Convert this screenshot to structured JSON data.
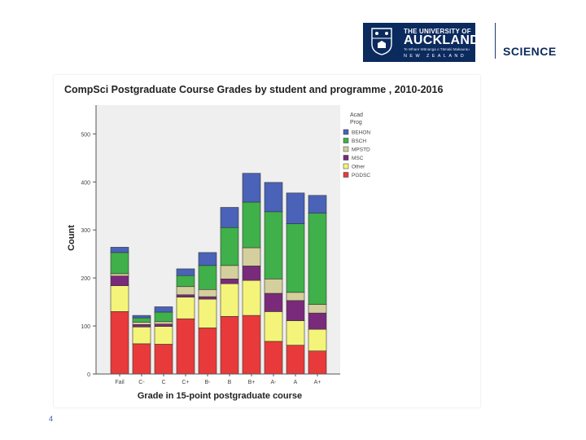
{
  "header": {
    "logo_line1": "THE UNIVERSITY OF",
    "logo_line2": "AUCKLAND",
    "logo_line3": "Te Whare Wānanga o Tāmaki Makaurau",
    "logo_line4": "NEW ZEALAND",
    "faculty": "SCIENCE",
    "colors": {
      "navy": "#0b2a5e"
    }
  },
  "page_number": "4",
  "chart_data": {
    "type": "bar",
    "stacked": true,
    "title": "CompSci Postgraduate Course Grades by student and programme , 2010-2016",
    "xlabel": "Grade in 15-point postgraduate course",
    "ylabel": "Count",
    "ylim": [
      0,
      560
    ],
    "yticks": [
      0,
      100,
      200,
      300,
      400,
      500
    ],
    "categories": [
      "Fail",
      "C-",
      "C",
      "C+",
      "B-",
      "B",
      "B+",
      "A-",
      "A",
      "A+"
    ],
    "legend_title": [
      "Acad",
      "Prog"
    ],
    "legend_position": "right",
    "series": [
      {
        "name": "PGDSC",
        "color": "#e83a3a",
        "values": [
          130,
          63,
          62,
          115,
          96,
          120,
          122,
          68,
          60,
          48
        ]
      },
      {
        "name": "Other",
        "color": "#f4f47a",
        "values": [
          54,
          35,
          37,
          45,
          60,
          68,
          73,
          62,
          51,
          45
        ]
      },
      {
        "name": "MSC",
        "color": "#7a2a7a",
        "values": [
          20,
          5,
          5,
          5,
          5,
          10,
          30,
          38,
          42,
          34
        ]
      },
      {
        "name": "MPSTD",
        "color": "#d4cf9c",
        "values": [
          5,
          5,
          5,
          17,
          15,
          28,
          38,
          30,
          17,
          18
        ]
      },
      {
        "name": "BSCH",
        "color": "#3fb04a",
        "values": [
          44,
          9,
          20,
          23,
          50,
          79,
          95,
          140,
          143,
          190
        ]
      },
      {
        "name": "BEHON",
        "color": "#4a62b8",
        "values": [
          11,
          5,
          11,
          14,
          27,
          42,
          60,
          61,
          64,
          37
        ]
      }
    ],
    "grid": false
  }
}
